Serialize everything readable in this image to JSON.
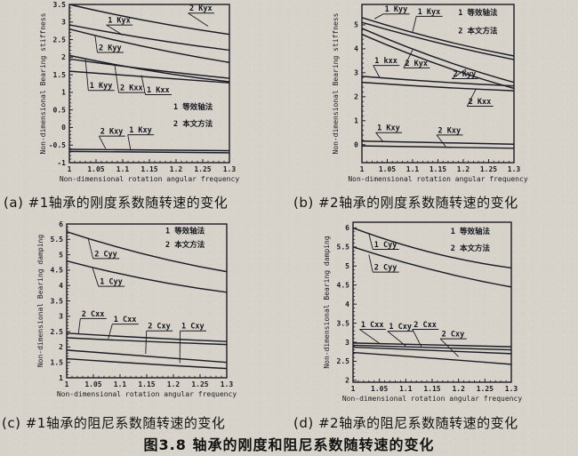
{
  "style": {
    "ink": "#1c1c26",
    "paper": "#d7d3ca"
  },
  "figure": {
    "caption": "图3.8 轴承的刚度和阻尼系数随转速的变化"
  },
  "chart_data": [
    {
      "id": "a",
      "type": "line",
      "caption": "(a) #1轴承的刚度系数随转速的变化",
      "xlabel": "Non-dimensional rotation angular frequency",
      "ylabel": "Non-dimensional Bearing stiffness",
      "xlim": [
        1,
        1.3
      ],
      "ylim": [
        -1,
        3.5
      ],
      "xtick_values": [
        1,
        1.05,
        1.1,
        1.15,
        1.2,
        1.25,
        1.3
      ],
      "xtick_labels": [
        "1",
        "1.05",
        "1.1",
        "1.15",
        "1.2",
        "1.25",
        "1.3"
      ],
      "ytick_values": [
        3.5,
        3,
        2.5,
        2,
        1.5,
        1,
        0.5,
        0,
        -0.5,
        -1
      ],
      "ytick_labels": [
        "3.5",
        "3",
        "2.5",
        "2",
        "1.5",
        "1",
        "0.5",
        "0",
        "-0.5",
        "-1"
      ],
      "legend": [
        {
          "text": "1 等效轴法",
          "x": 1.195,
          "y": 0.52
        },
        {
          "text": "2 本文方法",
          "x": 1.195,
          "y": 0.04
        }
      ],
      "series": [
        {
          "name": "2 Kyx",
          "points": [
            [
              1,
              3.5
            ],
            [
              1.15,
              3.02
            ],
            [
              1.3,
              2.65
            ]
          ]
        },
        {
          "name": "1 Kyx",
          "points": [
            [
              1,
              2.92
            ],
            [
              1.15,
              2.52
            ],
            [
              1.3,
              2.2
            ]
          ]
        },
        {
          "name": "2 Kyy",
          "points": [
            [
              1,
              2.8
            ],
            [
              1.15,
              2.27
            ],
            [
              1.3,
              1.85
            ]
          ]
        },
        {
          "name": "1 Kyy",
          "points": [
            [
              1,
              2.05
            ],
            [
              1.15,
              1.62
            ],
            [
              1.3,
              1.3
            ]
          ]
        },
        {
          "name": "2 Kxx",
          "points": [
            [
              1,
              1.95
            ],
            [
              1.15,
              1.65
            ],
            [
              1.3,
              1.4
            ]
          ]
        },
        {
          "name": "1 Kxx",
          "points": [
            [
              1,
              1.6
            ],
            [
              1.15,
              1.43
            ],
            [
              1.3,
              1.27
            ]
          ]
        },
        {
          "name": "2 Kxy",
          "points": [
            [
              1,
              -0.62
            ],
            [
              1.3,
              -0.66
            ]
          ]
        },
        {
          "name": "1 Kxy",
          "points": [
            [
              1,
              -0.68
            ],
            [
              1.3,
              -0.72
            ]
          ]
        }
      ],
      "labels": [
        {
          "text": "1 Kyx",
          "x": 1.072,
          "y": 2.98,
          "tx": 1.1,
          "ty": 2.63
        },
        {
          "text": "2 Kyx",
          "x": 1.225,
          "y": 3.32,
          "tx": 1.26,
          "ty": 2.88
        },
        {
          "text": "2 Kyy",
          "x": 1.055,
          "y": 2.2,
          "tx": 1.048,
          "ty": 2.63
        },
        {
          "text": "1 Kyy",
          "x": 1.038,
          "y": 1.12,
          "tx": 1.03,
          "ty": 1.97
        },
        {
          "text": "2 Kxx",
          "x": 1.095,
          "y": 1.06,
          "tx": 1.085,
          "ty": 1.78
        },
        {
          "text": "1 Kxx",
          "x": 1.145,
          "y": 1.0,
          "tx": 1.135,
          "ty": 1.49
        },
        {
          "text": "2 Kxy",
          "x": 1.058,
          "y": -0.18,
          "tx": 1.068,
          "ty": -0.6
        },
        {
          "text": "1 Kxy",
          "x": 1.112,
          "y": -0.14,
          "tx": 1.115,
          "ty": -0.66
        }
      ]
    },
    {
      "id": "b",
      "type": "line",
      "caption": "(b) #2轴承的刚度系数随转速的变化",
      "xlabel": "Non-dimensional rotation angular frequency",
      "ylabel": "Non-dimensional Bearing stiffness",
      "xlim": [
        1,
        1.3
      ],
      "ylim": [
        -0.75,
        5.85
      ],
      "xtick_values": [
        1,
        1.05,
        1.1,
        1.15,
        1.2,
        1.25,
        1.3
      ],
      "xtick_labels": [
        "1",
        "1.05",
        "1.1",
        "1.15",
        "1.2",
        "1.25",
        "1.3"
      ],
      "ytick_values": [
        5,
        4,
        3,
        2,
        1,
        0
      ],
      "ytick_labels": [
        "5",
        "4",
        "3",
        "2",
        "1",
        "0"
      ],
      "legend": [
        {
          "text": "1 等效轴法",
          "x": 1.19,
          "y": 5.4
        },
        {
          "text": "2 本文方法",
          "x": 1.19,
          "y": 4.65
        }
      ],
      "series": [
        {
          "name": "1 Kyy",
          "points": [
            [
              1,
              5.3
            ],
            [
              1.15,
              4.4
            ],
            [
              1.3,
              3.7
            ]
          ]
        },
        {
          "name": "1 Kyx",
          "points": [
            [
              1,
              5.1
            ],
            [
              1.15,
              4.25
            ],
            [
              1.3,
              3.55
            ]
          ]
        },
        {
          "name": "2 Kyx",
          "points": [
            [
              1,
              4.85
            ],
            [
              1.15,
              3.6
            ],
            [
              1.3,
              2.6
            ]
          ]
        },
        {
          "name": "2 Kyy",
          "points": [
            [
              1,
              4.6
            ],
            [
              1.15,
              3.35
            ],
            [
              1.3,
              2.35
            ]
          ]
        },
        {
          "name": "1 kxx",
          "points": [
            [
              1,
              2.85
            ],
            [
              1.15,
              2.62
            ],
            [
              1.3,
              2.45
            ]
          ]
        },
        {
          "name": "2 Kxx",
          "points": [
            [
              1,
              2.6
            ],
            [
              1.15,
              2.4
            ],
            [
              1.3,
              2.25
            ]
          ]
        },
        {
          "name": "1 Kxy",
          "points": [
            [
              1,
              0.15
            ],
            [
              1.3,
              0.02
            ]
          ]
        },
        {
          "name": "2 Kxy",
          "points": [
            [
              1,
              -0.05
            ],
            [
              1.3,
              -0.15
            ]
          ]
        }
      ],
      "labels": [
        {
          "text": "1 Kyy",
          "x": 1.045,
          "y": 5.55,
          "tx": 1.025,
          "ty": 5.25
        },
        {
          "text": "1 Kyx",
          "x": 1.11,
          "y": 5.45,
          "tx": 1.1,
          "ty": 4.7
        },
        {
          "text": "1 kxx",
          "x": 1.025,
          "y": 3.4,
          "tx": 1.035,
          "ty": 2.8
        },
        {
          "text": "2 Kyx",
          "x": 1.085,
          "y": 3.3,
          "tx": 1.1,
          "ty": 3.95
        },
        {
          "text": "2 Kyy",
          "x": 1.18,
          "y": 2.85,
          "tx": 1.205,
          "ty": 3.15
        },
        {
          "text": "2 Kxx",
          "x": 1.21,
          "y": 1.7,
          "tx": 1.225,
          "ty": 2.32
        },
        {
          "text": "1 Kxy",
          "x": 1.03,
          "y": 0.6,
          "tx": 1.042,
          "ty": 0.12
        },
        {
          "text": "2 Kxy",
          "x": 1.15,
          "y": 0.5,
          "tx": 1.165,
          "ty": -0.07
        }
      ]
    },
    {
      "id": "c",
      "type": "line",
      "caption": "(c) #1轴承的阻尼系数随转速的变化",
      "xlabel": "Non-dimensional rotation angular frequency",
      "ylabel": "Non-dimensional Bearing damping",
      "xlim": [
        1,
        1.3
      ],
      "ylim": [
        1,
        6
      ],
      "xtick_values": [
        1,
        1.05,
        1.1,
        1.15,
        1.2,
        1.25,
        1.3
      ],
      "xtick_labels": [
        "1",
        "1.05",
        "1.1",
        "1.15",
        "1.2",
        "1.25",
        "1.3"
      ],
      "ytick_values": [
        6,
        5.5,
        5,
        4.5,
        4,
        3.5,
        3,
        2.5,
        2,
        1.5,
        1
      ],
      "ytick_labels": [
        "6",
        "5.5",
        "5",
        "4.5",
        "4",
        "3.5",
        "3",
        "2.5",
        "2",
        "1.5",
        "1"
      ],
      "legend": [
        {
          "text": "1 等效轴法",
          "x": 1.185,
          "y": 5.7
        },
        {
          "text": "2 本文方法",
          "x": 1.185,
          "y": 5.25
        }
      ],
      "series": [
        {
          "name": "2 Cyy",
          "points": [
            [
              1,
              5.75
            ],
            [
              1.15,
              5.0
            ],
            [
              1.3,
              4.45
            ]
          ]
        },
        {
          "name": "1 Cyy",
          "points": [
            [
              1,
              4.8
            ],
            [
              1.15,
              4.2
            ],
            [
              1.3,
              3.78
            ]
          ]
        },
        {
          "name": "2 Cxx",
          "points": [
            [
              1,
              2.45
            ],
            [
              1.15,
              2.3
            ],
            [
              1.3,
              2.18
            ]
          ]
        },
        {
          "name": "1 Cxx",
          "points": [
            [
              1,
              2.3
            ],
            [
              1.15,
              2.18
            ],
            [
              1.3,
              2.08
            ]
          ]
        },
        {
          "name": "2 Cxy",
          "points": [
            [
              1,
              1.9
            ],
            [
              1.15,
              1.7
            ],
            [
              1.3,
              1.5
            ]
          ]
        },
        {
          "name": "1 Cxy",
          "points": [
            [
              1,
              1.62
            ],
            [
              1.15,
              1.45
            ],
            [
              1.3,
              1.3
            ]
          ]
        }
      ],
      "labels": [
        {
          "text": "2 Cyy",
          "x": 1.052,
          "y": 4.95,
          "tx": 1.04,
          "ty": 5.55
        },
        {
          "text": "1 Cyy",
          "x": 1.062,
          "y": 4.05,
          "tx": 1.048,
          "ty": 4.6
        },
        {
          "text": "2 Cxx",
          "x": 1.028,
          "y": 3.0,
          "tx": 1.022,
          "ty": 2.44
        },
        {
          "text": "1 Cxx",
          "x": 1.088,
          "y": 2.82,
          "tx": 1.078,
          "ty": 2.27
        },
        {
          "text": "2 Cxy",
          "x": 1.152,
          "y": 2.6,
          "tx": 1.148,
          "ty": 1.78
        },
        {
          "text": "1 Cxy",
          "x": 1.215,
          "y": 2.6,
          "tx": 1.212,
          "ty": 1.48
        }
      ]
    },
    {
      "id": "d",
      "type": "line",
      "caption": "(d) #2轴承的阻尼系数随转速的变化",
      "xlabel": "Non-dimensional rotation angular frequency",
      "ylabel": "Non-dimensional Bearing damping",
      "xlim": [
        1,
        1.3
      ],
      "ylim": [
        1.95,
        6.15
      ],
      "xtick_values": [
        1,
        1.05,
        1.1,
        1.15,
        1.2,
        1.25,
        1.3
      ],
      "xtick_labels": [
        "1",
        "1.05",
        "1.1",
        "1.15",
        "1.2",
        "1.25",
        "1.3"
      ],
      "ytick_values": [
        6,
        5.5,
        5,
        4.5,
        4,
        3.5,
        3,
        2.5,
        2
      ],
      "ytick_labels": [
        "6",
        "5.5",
        "5",
        "4.5",
        "4",
        "3.5",
        "3",
        "2.5",
        "2"
      ],
      "legend": [
        {
          "text": "1 等效轴法",
          "x": 1.185,
          "y": 5.85
        },
        {
          "text": "2 本文方法",
          "x": 1.185,
          "y": 5.4
        }
      ],
      "series": [
        {
          "name": "1 Cyy",
          "points": [
            [
              1,
              6.0
            ],
            [
              1.15,
              5.35
            ],
            [
              1.3,
              4.95
            ]
          ]
        },
        {
          "name": "2 Cyy",
          "points": [
            [
              1,
              5.5
            ],
            [
              1.15,
              4.9
            ],
            [
              1.3,
              4.45
            ]
          ]
        },
        {
          "name": "1 Cxx",
          "points": [
            [
              1,
              2.98
            ],
            [
              1.3,
              2.88
            ]
          ]
        },
        {
          "name": "1 Cxy",
          "points": [
            [
              1,
              2.92
            ],
            [
              1.3,
              2.8
            ]
          ]
        },
        {
          "name": "2 Cxx",
          "points": [
            [
              1,
              2.87
            ],
            [
              1.3,
              2.7
            ]
          ]
        },
        {
          "name": "2 Cxy",
          "points": [
            [
              1,
              2.73
            ],
            [
              1.15,
              2.58
            ],
            [
              1.3,
              2.42
            ]
          ]
        }
      ],
      "labels": [
        {
          "text": "1 Cyy",
          "x": 1.04,
          "y": 5.5,
          "tx": 1.03,
          "ty": 5.85
        },
        {
          "text": "2 Cyy",
          "x": 1.04,
          "y": 4.9,
          "tx": 1.03,
          "ty": 5.3
        },
        {
          "text": "1 Cxx",
          "x": 1.015,
          "y": 3.4,
          "tx": 1.05,
          "ty": 2.97
        },
        {
          "text": "1 Cxy",
          "x": 1.068,
          "y": 3.35,
          "tx": 1.1,
          "ty": 2.9
        },
        {
          "text": "2 Cxx",
          "x": 1.115,
          "y": 3.4,
          "tx": 1.13,
          "ty": 2.87
        },
        {
          "text": "2 Cxy",
          "x": 1.168,
          "y": 3.15,
          "tx": 1.2,
          "ty": 2.62
        }
      ]
    }
  ]
}
